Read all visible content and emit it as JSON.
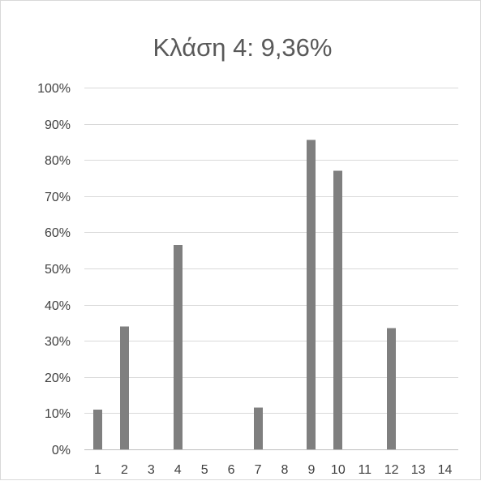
{
  "chart_data": {
    "type": "bar",
    "title": "Κλάση 4: 9,36%",
    "xlabel": "",
    "ylabel": "",
    "categories": [
      "1",
      "2",
      "3",
      "4",
      "5",
      "6",
      "7",
      "8",
      "9",
      "10",
      "11",
      "12",
      "13",
      "14"
    ],
    "values": [
      0.11,
      0.34,
      0,
      0.565,
      0,
      0,
      0.115,
      0,
      0.855,
      0.77,
      0,
      0.335,
      0,
      0
    ],
    "ylim": [
      0,
      1
    ],
    "yticks": [
      0,
      0.1,
      0.2,
      0.3,
      0.4,
      0.5,
      0.6,
      0.7,
      0.8,
      0.9,
      1.0
    ],
    "ytick_labels": [
      "0%",
      "10%",
      "20%",
      "30%",
      "40%",
      "50%",
      "60%",
      "70%",
      "80%",
      "90%",
      "100%"
    ],
    "grid": true,
    "legend": "none",
    "bar_color": "#7f7f7f"
  }
}
